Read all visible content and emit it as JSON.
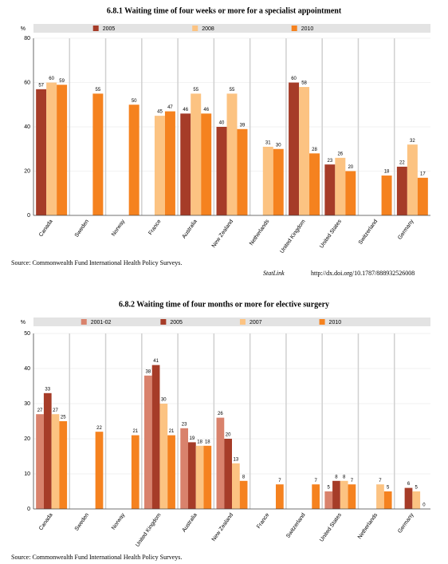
{
  "chart_data": [
    {
      "type": "bar",
      "title": "6.8.1 Waiting time of four weeks or more for a specialist appointment",
      "y_label": "%",
      "categories": [
        "Canada",
        "Sweden",
        "Norway",
        "France",
        "Australia",
        "New Zealand",
        "Netherlands",
        "United Kingdom",
        "United States",
        "Switzerland",
        "Germany"
      ],
      "series": [
        {
          "name": "2005",
          "color": "#a63c28",
          "values": [
            57,
            null,
            null,
            null,
            46,
            40,
            null,
            60,
            23,
            null,
            22
          ]
        },
        {
          "name": "2008",
          "color": "#fcc382",
          "values": [
            60,
            null,
            null,
            45,
            55,
            55,
            31,
            58,
            26,
            null,
            32
          ]
        },
        {
          "name": "2010",
          "color": "#f5821f",
          "values": [
            59,
            55,
            50,
            47,
            46,
            39,
            30,
            28,
            20,
            18,
            17
          ]
        }
      ],
      "ylim": [
        0,
        80
      ],
      "yticks": [
        0,
        20,
        40,
        60,
        80
      ],
      "grid": true,
      "source": "Source: Commonwealth Fund International Health Policy Surveys.",
      "statlink": {
        "label": "StatLink",
        "url": "http://dx.doi.org/10.1787/888932526008"
      }
    },
    {
      "type": "bar",
      "title": "6.8.2 Waiting time of four months or more for elective surgery",
      "y_label": "%",
      "categories": [
        "Canada",
        "Sweden",
        "Norway",
        "United Kingdom",
        "Australia",
        "New Zealand",
        "France",
        "Switzerland",
        "United States",
        "Netherlands",
        "Germany"
      ],
      "series": [
        {
          "name": "2001-02",
          "color": "#d9826c",
          "values": [
            27,
            null,
            null,
            38,
            23,
            26,
            null,
            null,
            5,
            null,
            null
          ]
        },
        {
          "name": "2005",
          "color": "#a63c28",
          "values": [
            33,
            null,
            null,
            41,
            19,
            20,
            null,
            null,
            8,
            null,
            6
          ]
        },
        {
          "name": "2007",
          "color": "#fcc382",
          "values": [
            27,
            null,
            null,
            30,
            18,
            13,
            null,
            null,
            8,
            7,
            5
          ]
        },
        {
          "name": "2010",
          "color": "#f5821f",
          "values": [
            25,
            22,
            21,
            21,
            18,
            8,
            7,
            7,
            7,
            5,
            0
          ]
        }
      ],
      "ylim": [
        0,
        50
      ],
      "yticks": [
        0,
        10,
        20,
        30,
        40,
        50
      ],
      "grid": true,
      "source": "Source: Commonwealth Fund International Health Policy Surveys."
    }
  ]
}
